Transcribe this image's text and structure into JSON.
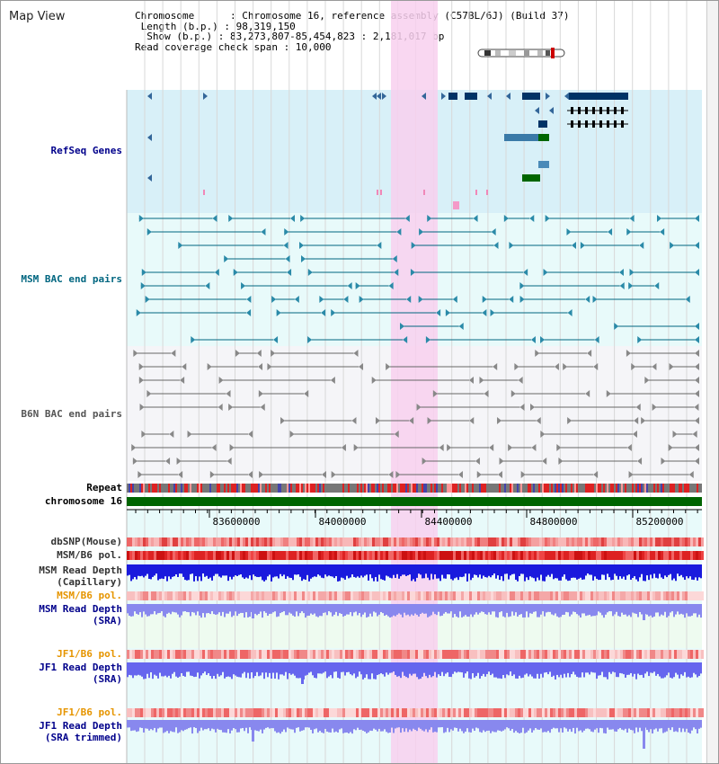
{
  "view": {
    "title": "Map View",
    "info_lines": [
      "Chromosome      : Chromosome 16, reference assembly (C57BL/6J) (Build 37)",
      " Length (b.p.) : 98,319,150",
      "  Show (b.p.) : 83,273,807-85,454,823 : 2,181,017 bp",
      "Read coverage check span : 10,000"
    ]
  },
  "tracks": {
    "refseq": "RefSeq Genes",
    "msm_bac": "MSM BAC end pairs",
    "b6n_bac": "B6N BAC end pairs",
    "repeat": "Repeat",
    "chrom": "chromosome 16",
    "dbsnp": "dbSNP(Mouse)",
    "msm_b6_pol": "MSM/B6 pol.",
    "msm_depth_cap_1": "MSM Read Depth",
    "msm_depth_cap_2": "(Capillary)",
    "msm_b6_pol_sra": "MSM/B6 pol.",
    "msm_depth_sra_1": "MSM Read Depth",
    "msm_depth_sra_2": "(SRA)",
    "jf1_b6_pol": "JF1/B6 pol.",
    "jf1_depth_1": "JF1 Read Depth",
    "jf1_depth_2": "(SRA)",
    "jf1_b6_pol_2": "JF1/B6 pol.",
    "jf1_depth_trim_1": "JF1 Read Depth",
    "jf1_depth_trim_2": "(SRA trimmed)"
  },
  "axis": {
    "ticks": [
      "83600000",
      "84000000",
      "84400000",
      "84800000",
      "85200000"
    ]
  },
  "colors": {
    "refseq_bg": "#d8f0f8",
    "msm_bg": "#e8fafa",
    "b6n_bg": "#f5f5f8",
    "highlight": "#f8d0ee",
    "gene_blue": "#003366",
    "gene_green": "#006600",
    "msm_pair": "#006680",
    "b6n_pair": "#666666",
    "chrom_bar": "#006400",
    "depth_blue": "#0000ee",
    "depth_light": "#7777ee",
    "label_blue": "#00008b",
    "label_orange": "#e69500"
  }
}
